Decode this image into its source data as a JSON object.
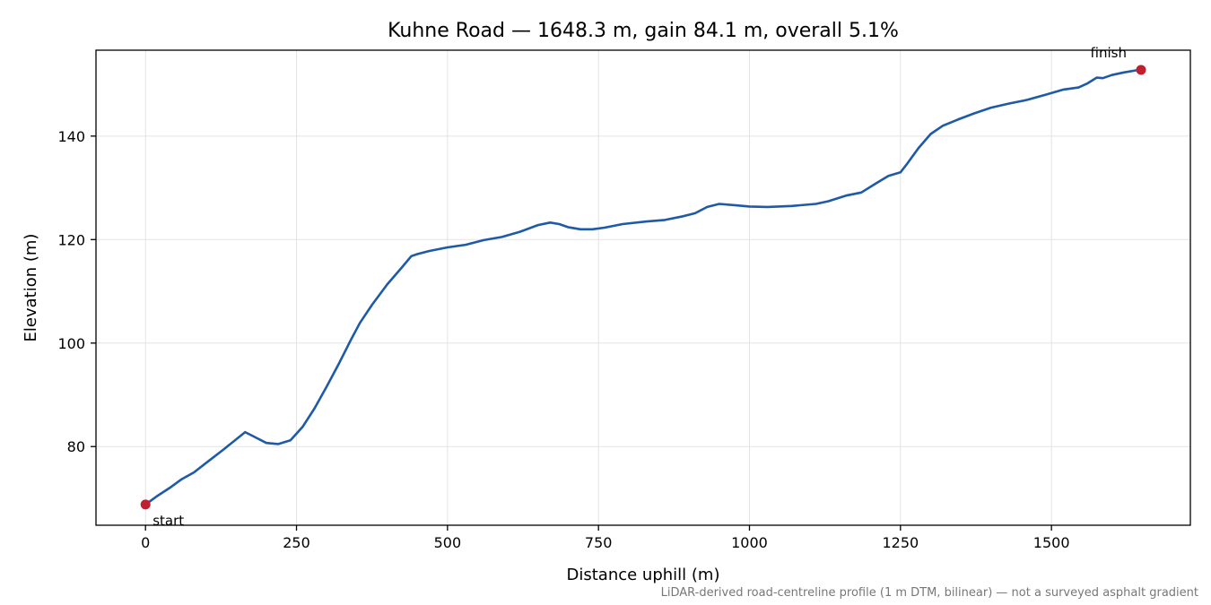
{
  "chart_data": {
    "type": "line",
    "title": "Kuhne Road — 1648.3 m, gain 84.1 m, overall 5.1%",
    "xlabel": "Distance uphill (m)",
    "ylabel": "Elevation (m)",
    "xlim": [
      -82,
      1730
    ],
    "ylim": [
      64.8,
      156.6
    ],
    "xticks": [
      0,
      250,
      500,
      750,
      1000,
      1250,
      1500
    ],
    "yticks": [
      80,
      100,
      120,
      140
    ],
    "xtick_labels": [
      "0",
      "250",
      "500",
      "750",
      "1000",
      "1250",
      "1500"
    ],
    "ytick_labels": [
      "80",
      "100",
      "120",
      "140"
    ],
    "grid": true,
    "line_color": "#1f5aa8",
    "marker_color": "#c0202e",
    "series": [
      {
        "x": [
          0,
          20,
          40,
          60,
          80,
          100,
          130,
          165,
          185,
          200,
          220,
          240,
          260,
          280,
          300,
          320,
          340,
          355,
          375,
          400,
          425,
          440,
          450,
          470,
          500,
          530,
          560,
          590,
          620,
          650,
          670,
          685,
          700,
          720,
          740,
          760,
          790,
          830,
          860,
          890,
          910,
          930,
          950,
          980,
          1000,
          1030,
          1070,
          1110,
          1130,
          1160,
          1185,
          1210,
          1230,
          1250,
          1260,
          1280,
          1300,
          1320,
          1345,
          1370,
          1400,
          1430,
          1460,
          1490,
          1520,
          1545,
          1560,
          1575,
          1585,
          1600,
          1620,
          1640,
          1648.3
        ],
        "y": [
          68.8,
          70.5,
          72.0,
          73.7,
          75.0,
          76.8,
          79.5,
          82.8,
          81.6,
          80.7,
          80.5,
          81.2,
          83.8,
          87.4,
          91.6,
          96.0,
          100.6,
          103.9,
          107.4,
          111.3,
          114.7,
          116.8,
          117.2,
          117.8,
          118.5,
          119.0,
          119.9,
          120.5,
          121.5,
          122.8,
          123.3,
          123.0,
          122.4,
          122.0,
          122.0,
          122.3,
          123.0,
          123.5,
          123.8,
          124.5,
          125.1,
          126.3,
          126.9,
          126.6,
          126.4,
          126.3,
          126.5,
          126.9,
          127.4,
          128.5,
          129.1,
          130.9,
          132.3,
          133.0,
          134.5,
          137.7,
          140.4,
          142.0,
          143.2,
          144.3,
          145.5,
          146.3,
          147.0,
          148.0,
          149.0,
          149.4,
          150.2,
          151.3,
          151.2,
          151.8,
          152.3,
          152.7,
          152.8
        ]
      }
    ],
    "annotations": [
      {
        "label": "start",
        "x": 0,
        "y": 68.8
      },
      {
        "label": "finish",
        "x": 1648.3,
        "y": 152.8
      }
    ],
    "footnote": "LiDAR-derived road-centreline profile (1 m DTM, bilinear) — not a surveyed asphalt gradient"
  }
}
